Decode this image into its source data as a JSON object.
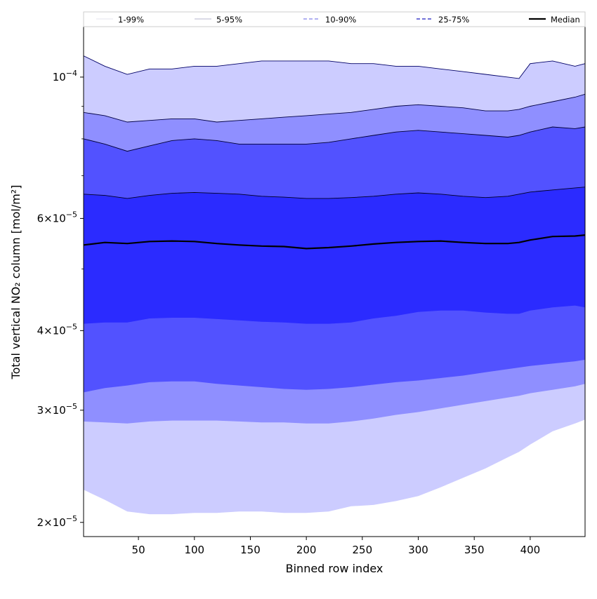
{
  "chart_data": {
    "type": "area",
    "title": "",
    "xlabel": "Binned row index",
    "ylabel": "Total vertical NO₂ column [mol/m²]",
    "xlim": [
      1,
      449
    ],
    "ylim": [
      1.9e-05,
      0.00012
    ],
    "y_scale": "log",
    "grid": false,
    "legend_position": "top",
    "x_ticks": [
      {
        "value": 50,
        "label": "50"
      },
      {
        "value": 100,
        "label": "100"
      },
      {
        "value": 150,
        "label": "150"
      },
      {
        "value": 200,
        "label": "200"
      },
      {
        "value": 250,
        "label": "250"
      },
      {
        "value": 300,
        "label": "300"
      },
      {
        "value": 350,
        "label": "350"
      },
      {
        "value": 400,
        "label": "400"
      }
    ],
    "y_ticks": [
      {
        "value": 2e-05,
        "mantissa": "2",
        "exponent": "−5"
      },
      {
        "value": 3e-05,
        "mantissa": "3",
        "exponent": "−5"
      },
      {
        "value": 4e-05,
        "mantissa": "4",
        "exponent": "−5"
      },
      {
        "value": 6e-05,
        "mantissa": "6",
        "exponent": "−5"
      },
      {
        "value": 0.0001,
        "mantissa": "",
        "exponent": "−4"
      }
    ],
    "x": [
      1,
      20,
      40,
      60,
      80,
      100,
      120,
      140,
      160,
      180,
      200,
      220,
      240,
      260,
      280,
      300,
      320,
      340,
      360,
      380,
      390,
      400,
      420,
      440,
      449
    ],
    "bands": [
      {
        "name": "1-99%",
        "color": "#ccccff",
        "line_color": "#000066",
        "dash": "",
        "lower": [
          2.25e-05,
          2.17e-05,
          2.08e-05,
          2.06e-05,
          2.06e-05,
          2.07e-05,
          2.07e-05,
          2.08e-05,
          2.08e-05,
          2.07e-05,
          2.07e-05,
          2.08e-05,
          2.12e-05,
          2.13e-05,
          2.16e-05,
          2.2e-05,
          2.27e-05,
          2.35e-05,
          2.43e-05,
          2.53e-05,
          2.58e-05,
          2.65e-05,
          2.78e-05,
          2.86e-05,
          2.9e-05
        ],
        "upper": [
          0.000108,
          0.000104,
          0.000101,
          0.000103,
          0.000103,
          0.000104,
          0.000104,
          0.000105,
          0.000106,
          0.000106,
          0.000106,
          0.000106,
          0.000105,
          0.000105,
          0.000104,
          0.000104,
          0.000103,
          0.000102,
          0.000101,
          0.0001,
          9.95e-05,
          0.000105,
          0.000106,
          0.000104,
          0.000105
        ]
      },
      {
        "name": "5-95%",
        "color": "#8f8fff",
        "line_color": "#000044",
        "dash": "",
        "lower": [
          2.88e-05,
          2.87e-05,
          2.86e-05,
          2.88e-05,
          2.89e-05,
          2.89e-05,
          2.89e-05,
          2.88e-05,
          2.87e-05,
          2.87e-05,
          2.86e-05,
          2.86e-05,
          2.88e-05,
          2.91e-05,
          2.95e-05,
          2.98e-05,
          3.02e-05,
          3.06e-05,
          3.1e-05,
          3.14e-05,
          3.16e-05,
          3.19e-05,
          3.23e-05,
          3.27e-05,
          3.3e-05
        ],
        "upper": [
          8.8e-05,
          8.7e-05,
          8.5e-05,
          8.55e-05,
          8.6e-05,
          8.6e-05,
          8.5e-05,
          8.55e-05,
          8.6e-05,
          8.65e-05,
          8.7e-05,
          8.75e-05,
          8.8e-05,
          8.9e-05,
          9e-05,
          9.05e-05,
          9e-05,
          8.95e-05,
          8.85e-05,
          8.85e-05,
          8.9e-05,
          9e-05,
          9.15e-05,
          9.3e-05,
          9.4e-05
        ]
      },
      {
        "name": "10-90%",
        "color": "#5252ff",
        "line_color": "#000033",
        "dash": "",
        "lower": [
          3.2e-05,
          3.25e-05,
          3.28e-05,
          3.32e-05,
          3.33e-05,
          3.33e-05,
          3.3e-05,
          3.28e-05,
          3.26e-05,
          3.24e-05,
          3.23e-05,
          3.24e-05,
          3.26e-05,
          3.29e-05,
          3.32e-05,
          3.34e-05,
          3.37e-05,
          3.4e-05,
          3.44e-05,
          3.48e-05,
          3.5e-05,
          3.52e-05,
          3.55e-05,
          3.58e-05,
          3.6e-05
        ],
        "upper": [
          8e-05,
          7.85e-05,
          7.65e-05,
          7.8e-05,
          7.95e-05,
          8e-05,
          7.95e-05,
          7.85e-05,
          7.85e-05,
          7.85e-05,
          7.85e-05,
          7.9e-05,
          8e-05,
          8.1e-05,
          8.2e-05,
          8.25e-05,
          8.2e-05,
          8.15e-05,
          8.1e-05,
          8.05e-05,
          8.1e-05,
          8.2e-05,
          8.35e-05,
          8.3e-05,
          8.35e-05
        ]
      },
      {
        "name": "25-75%",
        "color": "#2b2bff",
        "line_color": "#000022",
        "dash": "",
        "lower": [
          4.1e-05,
          4.12e-05,
          4.12e-05,
          4.18e-05,
          4.19e-05,
          4.19e-05,
          4.17e-05,
          4.15e-05,
          4.13e-05,
          4.12e-05,
          4.1e-05,
          4.1e-05,
          4.12e-05,
          4.18e-05,
          4.22e-05,
          4.28e-05,
          4.3e-05,
          4.3e-05,
          4.27e-05,
          4.25e-05,
          4.25e-05,
          4.3e-05,
          4.35e-05,
          4.38e-05,
          4.35e-05
        ],
        "upper": [
          6.55e-05,
          6.52e-05,
          6.45e-05,
          6.52e-05,
          6.57e-05,
          6.59e-05,
          6.57e-05,
          6.55e-05,
          6.5e-05,
          6.48e-05,
          6.45e-05,
          6.45e-05,
          6.47e-05,
          6.5e-05,
          6.55e-05,
          6.58e-05,
          6.55e-05,
          6.5e-05,
          6.47e-05,
          6.5e-05,
          6.55e-05,
          6.6e-05,
          6.65e-05,
          6.7e-05,
          6.72e-05
        ]
      }
    ],
    "legend_line_styles": [
      {
        "name": "1-99%",
        "color": "#e4e4ee",
        "dash": "",
        "width": 1
      },
      {
        "name": "5-95%",
        "color": "#b4b4cc",
        "dash": "",
        "width": 1
      },
      {
        "name": "10-90%",
        "color": "#8080ea",
        "dash": "5,3",
        "width": 1.3
      },
      {
        "name": "25-75%",
        "color": "#4444cc",
        "dash": "5,3",
        "width": 1.5
      },
      {
        "name": "Median",
        "color": "#000000",
        "dash": "",
        "width": 2.2
      }
    ],
    "median": {
      "name": "Median",
      "color": "#000000",
      "values": [
        5.45e-05,
        5.5e-05,
        5.48e-05,
        5.52e-05,
        5.53e-05,
        5.52e-05,
        5.48e-05,
        5.45e-05,
        5.43e-05,
        5.42e-05,
        5.38e-05,
        5.4e-05,
        5.43e-05,
        5.47e-05,
        5.5e-05,
        5.52e-05,
        5.53e-05,
        5.5e-05,
        5.48e-05,
        5.48e-05,
        5.5e-05,
        5.55e-05,
        5.62e-05,
        5.63e-05,
        5.65e-05
      ]
    }
  }
}
